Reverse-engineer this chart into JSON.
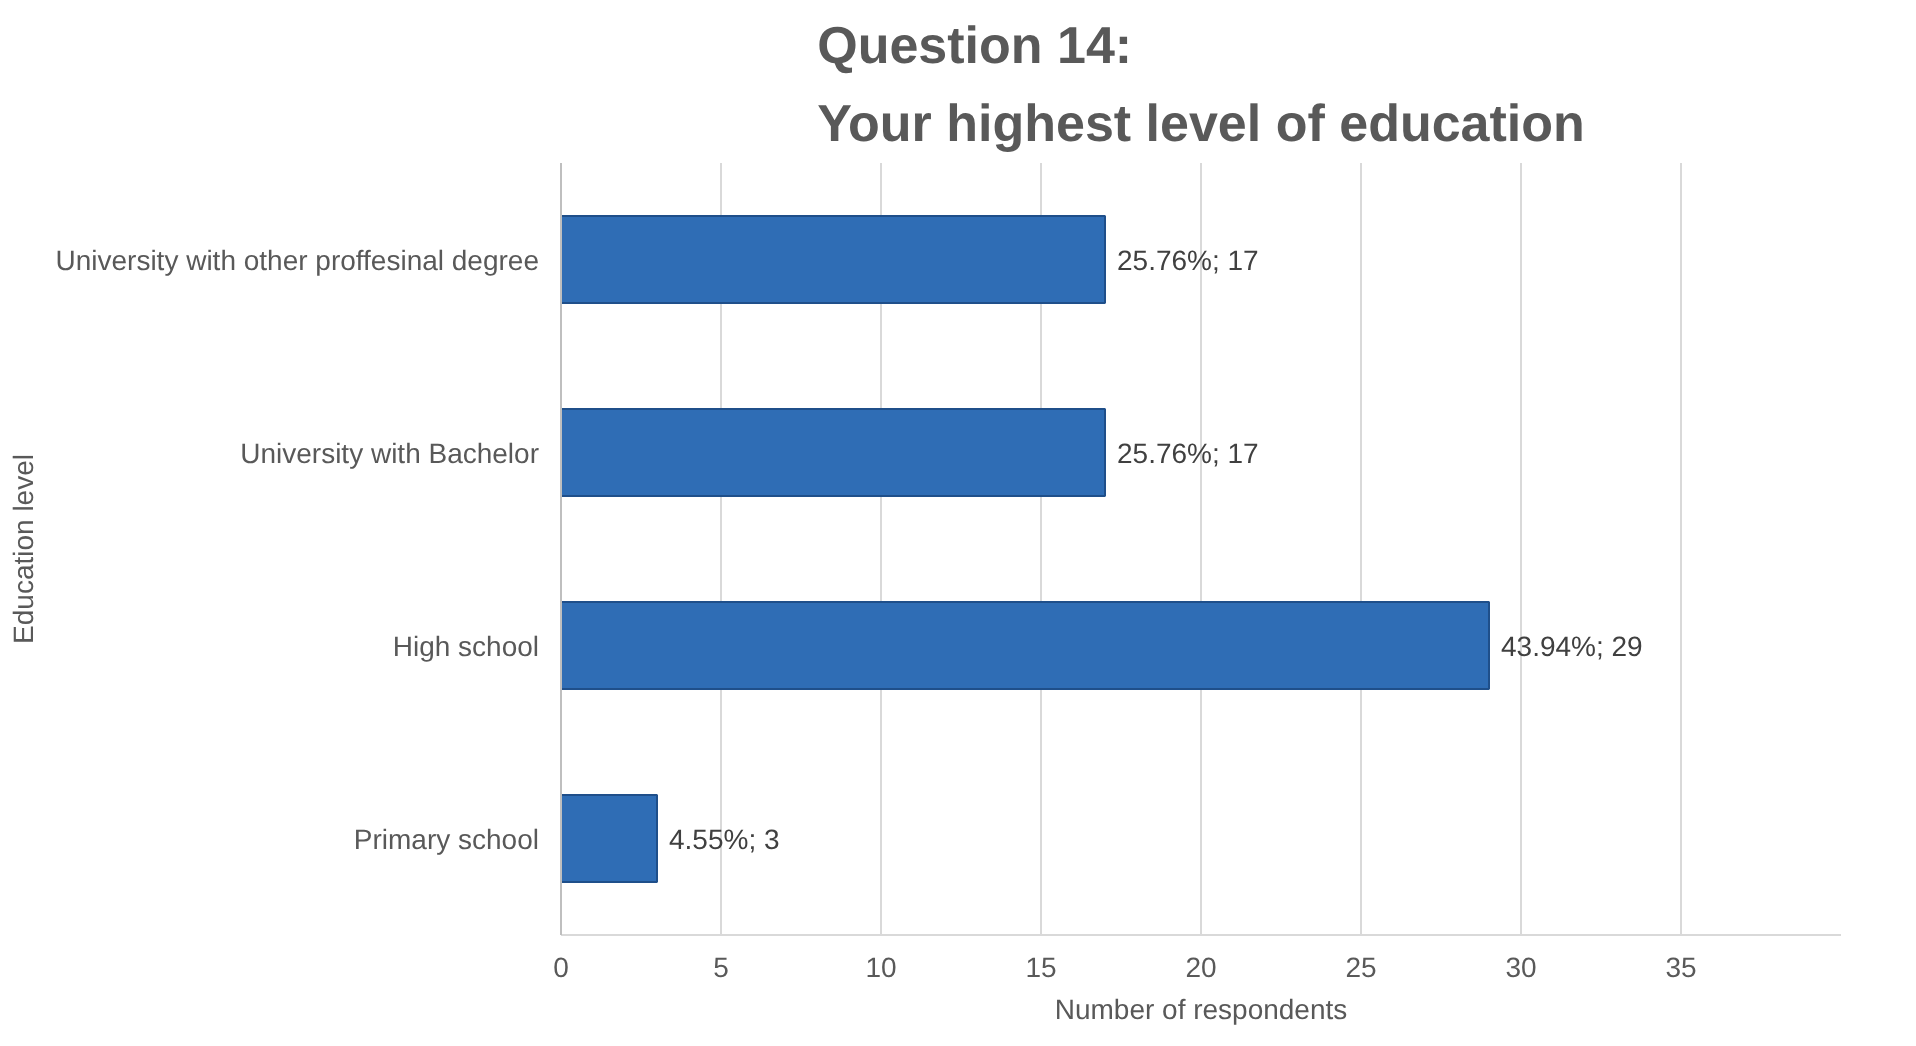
{
  "chart_data": {
    "type": "bar",
    "orientation": "horizontal",
    "title": "Question 14:\nYour highest level of education",
    "xlabel": "Number of respondents",
    "ylabel": "Education level",
    "categories": [
      "University with other proffesinal degree",
      "University with Bachelor",
      "High school",
      "Primary school"
    ],
    "values": [
      17,
      17,
      29,
      3
    ],
    "value_labels": [
      "25.76%; 17",
      "25.76%; 17",
      "43.94%; 29",
      "4.55%; 3"
    ],
    "color": "#2f6db5",
    "xlim": [
      0,
      40
    ],
    "xticks": [
      0,
      5,
      10,
      15,
      20,
      25,
      30,
      35
    ],
    "grid": "x"
  }
}
